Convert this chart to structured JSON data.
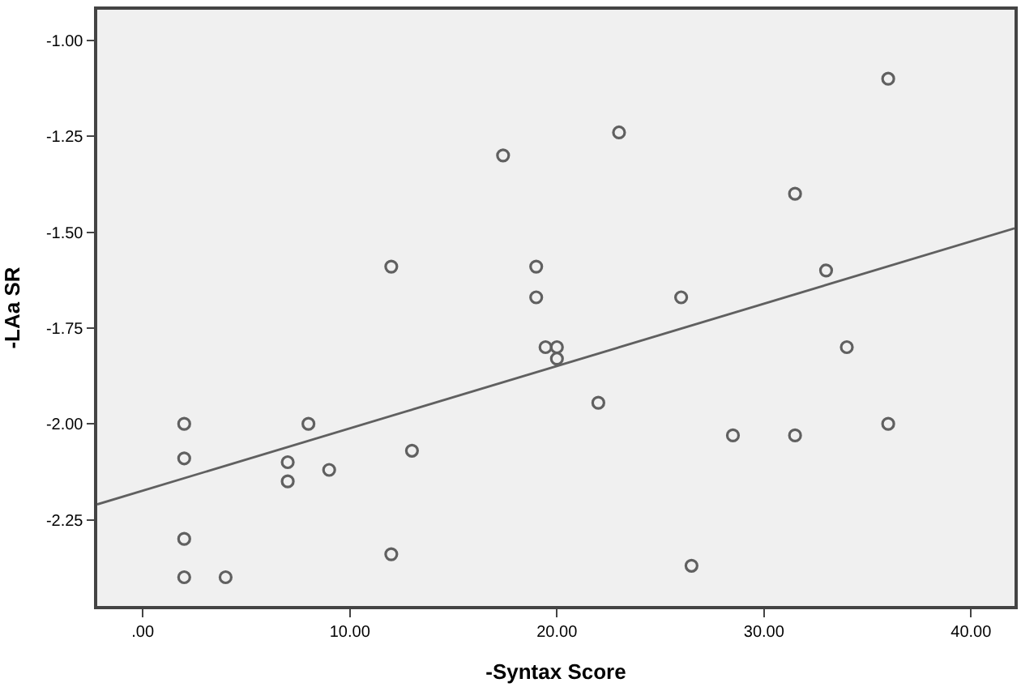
{
  "chart_data": {
    "type": "scatter",
    "xlabel": "-Syntax Score",
    "ylabel": "-LAa SR",
    "grid": false,
    "xlim": [
      -2.2,
      42.1
    ],
    "ylim": [
      -2.475,
      -0.92
    ],
    "xticks": [
      {
        "value": 0,
        "label": ".00"
      },
      {
        "value": 10,
        "label": "10.00"
      },
      {
        "value": 20,
        "label": "20.00"
      },
      {
        "value": 30,
        "label": "30.00"
      },
      {
        "value": 40,
        "label": "40.00"
      }
    ],
    "yticks": [
      {
        "value": -2.25,
        "label": "-2.25"
      },
      {
        "value": -2,
        "label": "-2.00"
      },
      {
        "value": -1.75,
        "label": "-1.75"
      },
      {
        "value": -1.5,
        "label": "-1.50"
      },
      {
        "value": -1.25,
        "label": "-1.25"
      },
      {
        "value": -1,
        "label": "-1.00"
      }
    ],
    "series": [
      {
        "color": "#606060",
        "marker": "circle",
        "x": [
          2,
          2,
          2,
          2,
          4,
          7,
          7,
          8,
          9,
          12,
          12,
          13,
          17.4,
          19,
          19,
          19.45,
          20,
          20,
          22,
          23,
          26,
          26.5,
          28.5,
          31.5,
          31.5,
          33,
          34,
          36,
          36
        ],
        "values": [
          -2.0,
          -2.09,
          -2.3,
          -2.4,
          -2.4,
          -2.1,
          -2.15,
          -2.0,
          -2.12,
          -1.59,
          -2.34,
          -2.07,
          -1.3,
          -1.59,
          -1.67,
          -1.8,
          -1.8,
          -1.83,
          -1.945,
          -1.24,
          -1.67,
          -2.37,
          -2.03,
          -1.4,
          -2.03,
          -1.6,
          -1.8,
          -1.1,
          -2.0
        ]
      },
      {
        "type": "line",
        "marker": "none",
        "color": "#606060",
        "x": [
          -2.2,
          42.1
        ],
        "values": [
          -2.21,
          -1.49
        ]
      }
    ]
  }
}
